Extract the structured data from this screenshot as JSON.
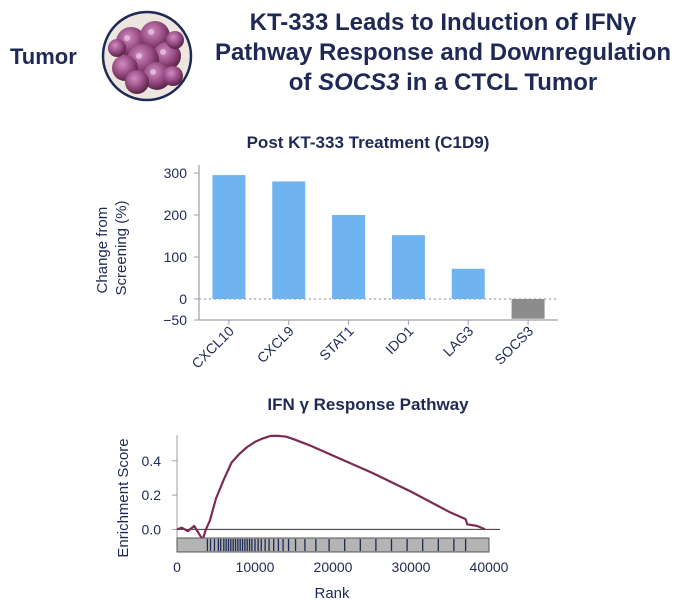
{
  "header": {
    "tumor_label": "Tumor",
    "title_line1": "KT-333 Leads to Induction of IFNγ",
    "title_line2": "Pathway Response and Downregulation",
    "title_line3_pre": "of ",
    "title_line3_gene": "SOCS3",
    "title_line3_post": " in a CTCL Tumor"
  },
  "colors": {
    "title": "#1e2a55",
    "bar_positive": "#6fb4f0",
    "bar_negative": "#8c8c8c",
    "es_curve": "#7b2a55",
    "rank_bar_fill": "#b4b4b4"
  },
  "chart_data": [
    {
      "type": "bar",
      "title": "Post KT-333 Treatment (C1D9)",
      "ylabel_line1": "Change from",
      "ylabel_line2": "Screening (%)",
      "xlabel": "",
      "categories": [
        "CXCL10",
        "CXCL9",
        "STAT1",
        "IDO1",
        "LAG3",
        "SOCS3"
      ],
      "values": [
        295,
        280,
        200,
        152,
        72,
        -47
      ],
      "ylim": [
        -50,
        300
      ],
      "yticks": [
        -50,
        0,
        100,
        200,
        300
      ],
      "ytick_labels": [
        "−50",
        "0",
        "100",
        "200",
        "300"
      ],
      "zero_line": "dotted"
    },
    {
      "type": "line",
      "title": "IFN γ Response Pathway",
      "xlabel": "Rank",
      "ylabel": "Enrichment Score",
      "xlim": [
        0,
        40000
      ],
      "ylim": [
        -0.05,
        0.55
      ],
      "xticks": [
        0,
        10000,
        20000,
        30000,
        40000
      ],
      "xtick_labels": [
        "0",
        "10000",
        "20000",
        "30000",
        "40000"
      ],
      "yticks": [
        0.0,
        0.2,
        0.4
      ],
      "ytick_labels": [
        "0.0",
        "0.2",
        "0.4"
      ],
      "series": [
        {
          "name": "Enrichment Score",
          "x": [
            0,
            600,
            1400,
            2200,
            3300,
            3700,
            4200,
            5000,
            6000,
            7000,
            8000,
            9000,
            10000,
            11000,
            12000,
            13000,
            14000,
            15000,
            17000,
            20000,
            25000,
            30000,
            35000,
            37000,
            37200,
            38500,
            39500
          ],
          "y": [
            0.0,
            0.01,
            -0.01,
            0.02,
            -0.06,
            0.0,
            0.05,
            0.18,
            0.29,
            0.39,
            0.44,
            0.48,
            0.51,
            0.53,
            0.545,
            0.545,
            0.54,
            0.525,
            0.49,
            0.43,
            0.33,
            0.22,
            0.1,
            0.06,
            0.03,
            0.02,
            0.0
          ]
        }
      ],
      "rank_hit_positions": [
        3900,
        4300,
        4800,
        5300,
        5600,
        6000,
        6300,
        6600,
        6900,
        7200,
        7500,
        7800,
        8100,
        8400,
        8700,
        9000,
        9300,
        9600,
        10000,
        10400,
        10800,
        11300,
        11800,
        12400,
        13000,
        13600,
        14300,
        15200,
        16400,
        17800,
        19500,
        21500,
        23500,
        25500,
        27500,
        29500,
        31500,
        33500,
        35500,
        37000
      ]
    }
  ]
}
